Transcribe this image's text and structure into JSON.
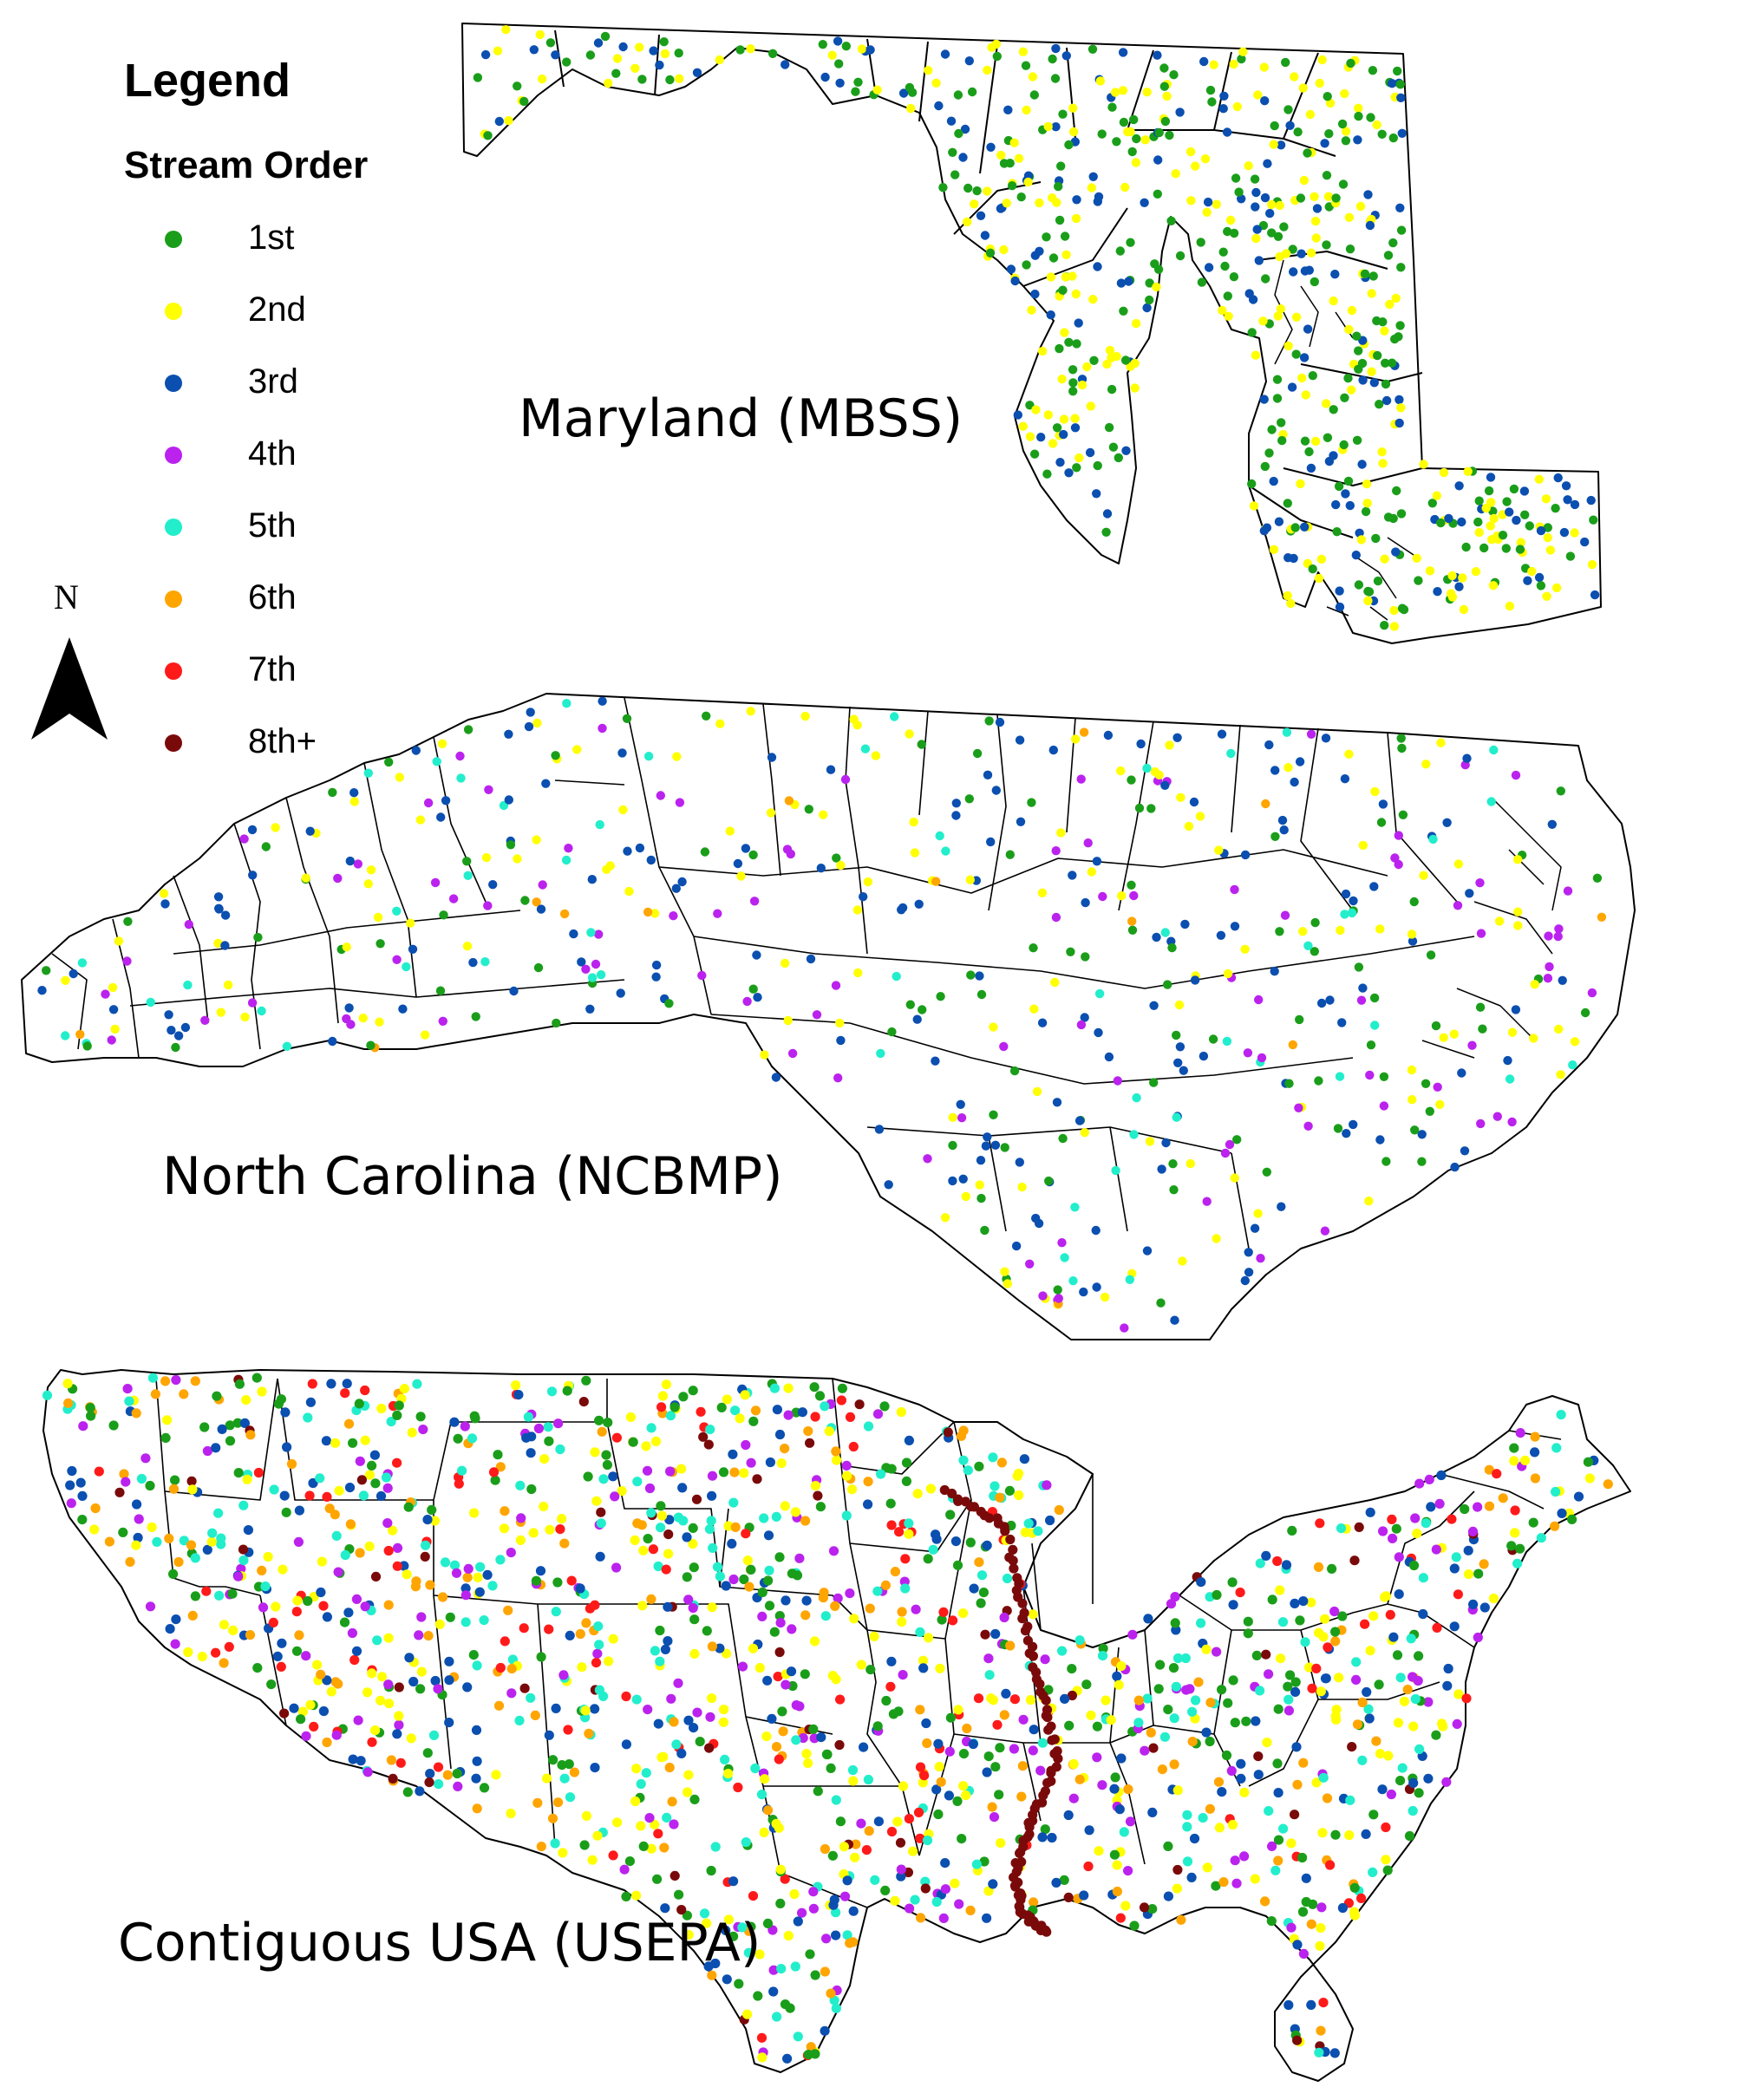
{
  "legend": {
    "title": "Legend",
    "subtitle": "Stream Order",
    "items": [
      {
        "label": "1st",
        "color": "#1a9e1a"
      },
      {
        "label": "2nd",
        "color": "#ffff00"
      },
      {
        "label": "3rd",
        "color": "#0b4fb0"
      },
      {
        "label": "4th",
        "color": "#bb22ee"
      },
      {
        "label": "5th",
        "color": "#22eecc"
      },
      {
        "label": "6th",
        "color": "#ffa500"
      },
      {
        "label": "7th",
        "color": "#ff1a1a"
      },
      {
        "label": "8th+",
        "color": "#7a0a0a"
      }
    ]
  },
  "north_arrow": {
    "letter": "N"
  },
  "maps": {
    "maryland": {
      "title": "Maryland (MBSS)",
      "orders_present": [
        "1st",
        "2nd",
        "3rd"
      ]
    },
    "north_carolina": {
      "title": "North Carolina (NCBMP)",
      "orders_present": [
        "1st",
        "2nd",
        "3rd",
        "4th",
        "5th",
        "6th"
      ]
    },
    "usa": {
      "title": "Contiguous USA (USEPA)",
      "orders_present": [
        "1st",
        "2nd",
        "3rd",
        "4th",
        "5th",
        "6th",
        "7th",
        "8th+"
      ]
    }
  }
}
